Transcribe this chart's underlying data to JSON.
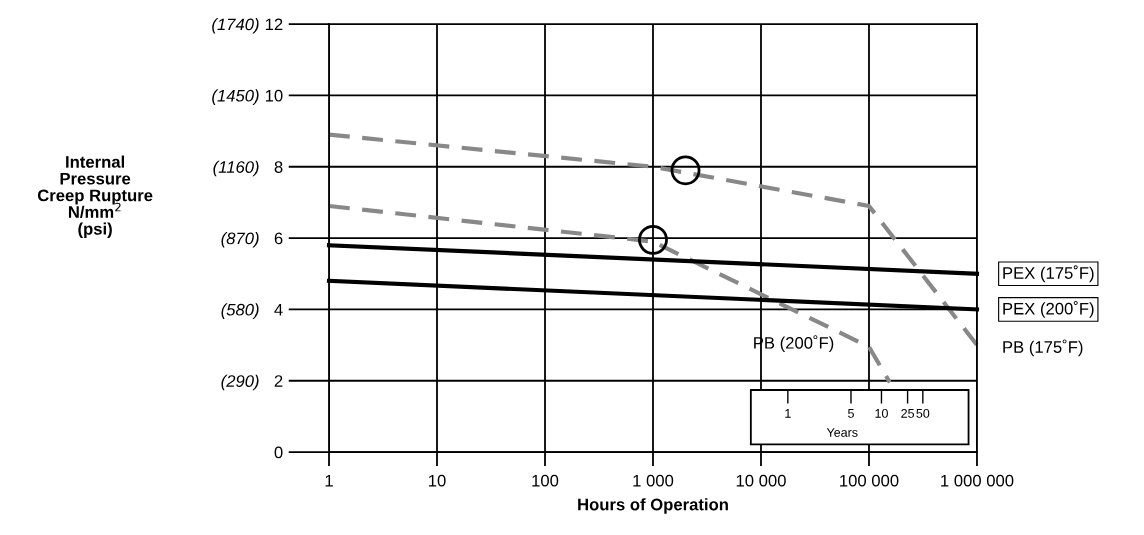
{
  "chart_data": {
    "type": "line",
    "xlabel": "Hours of Operation",
    "y2label": "Internal\nPressure\nCreep Rupture\nN/mm$^{2}$\n(psi)",
    "log": "x",
    "grid": true,
    "legend": false,
    "line_style": "solid",
    "marker": "none",
    "xlim": [
      1,
      1000000
    ],
    "xticks": [
      1,
      10,
      100,
      {
        "value": 1000,
        "label": "1 000"
      },
      {
        "value": 10000,
        "label": "10 000"
      },
      {
        "value": 100000,
        "label": "100 000"
      },
      {
        "value": 1000000,
        "label": "1 000 000"
      }
    ],
    "ylim": [
      0,
      12
    ],
    "yticks": [
      0,
      2,
      4,
      6,
      8,
      10,
      12
    ],
    "y2lim": [
      0,
      1740
    ],
    "y2ticks": [
      {
        "value": 290,
        "label": "(290)"
      },
      {
        "value": 580,
        "label": "(580)"
      },
      {
        "value": 870,
        "label": "(870)"
      },
      {
        "value": 1160,
        "label": "(1160)"
      },
      {
        "value": 1450,
        "label": "(1450)"
      },
      {
        "value": 1740,
        "label": "(1740)"
      }
    ],
    "series": [
      {
        "name": "PB (175˚F)",
        "color": "#888888",
        "line_style": "dashed",
        "x": [
          1,
          1000,
          100000,
          1000000
        ],
        "values": [
          8.9,
          8.0,
          6.9,
          3.0
        ]
      },
      {
        "name": "PB (200˚F)",
        "color": "#888888",
        "line_style": "dashed",
        "x": [
          1,
          1000,
          100000,
          156000
        ],
        "values": [
          6.9,
          5.9,
          2.95,
          1.95
        ]
      },
      {
        "name": "PEX (175˚F)",
        "color": "#000000",
        "x": [
          1,
          1000000
        ],
        "values": [
          5.8,
          5.0
        ]
      },
      {
        "name": "PEX (200˚F)",
        "color": "#000000",
        "x": [
          1,
          1000000
        ],
        "values": [
          4.8,
          4.0
        ]
      },
      {
        "type": "scatter",
        "color": "#000000",
        "marker": "circle",
        "x": [
          2000,
          1000
        ],
        "values": [
          7.9,
          5.95
        ]
      }
    ],
    "annotations": [
      "1",
      "5",
      "10",
      "25",
      "50",
      "Years"
    ]
  }
}
